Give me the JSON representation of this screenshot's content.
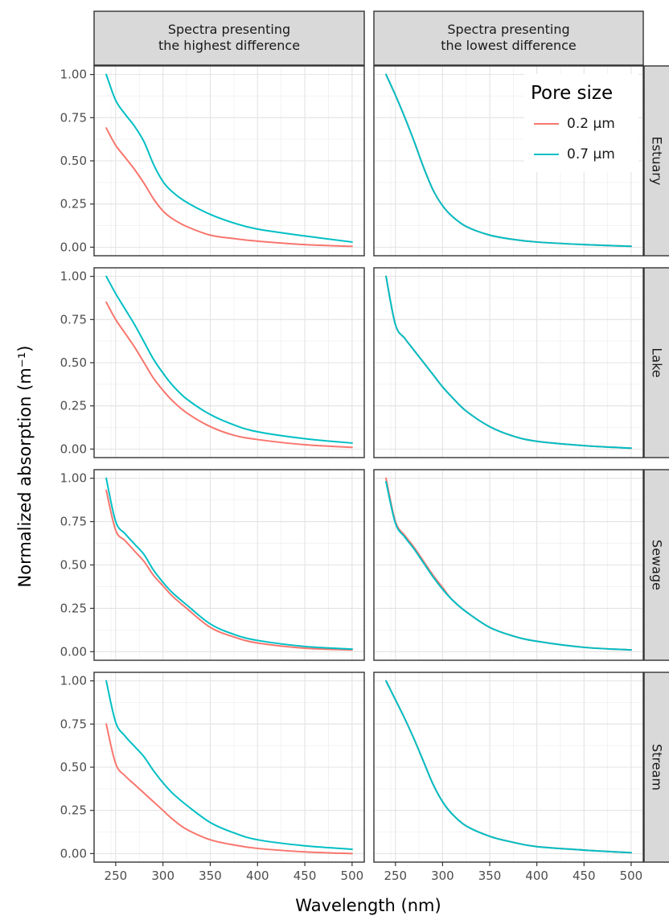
{
  "chart_data": {
    "type": "line",
    "layout": "facet-grid",
    "columns": [
      "Spectra presenting\nthe highest difference",
      "Spectra presenting\nthe lowest difference"
    ],
    "rows": [
      "Estuary",
      "Lake",
      "Sewage",
      "Stream"
    ],
    "xlabel": "Wavelength (nm)",
    "ylabel": "Normalized absorption (m⁻¹)",
    "xlim": [
      240,
      500
    ],
    "ylim": [
      0,
      1
    ],
    "xticks": [
      250,
      300,
      350,
      400,
      450,
      500
    ],
    "yticks": [
      "0.00",
      "0.25",
      "0.50",
      "0.75",
      "1.00"
    ],
    "grid": true,
    "legend": {
      "title": "Pore size",
      "placement": "top-right of Estuary / lowest-difference panel",
      "entries": [
        {
          "label": "0.2 µm",
          "color": "#F8766D"
        },
        {
          "label": "0.7 µm",
          "color": "#00BFC4"
        }
      ]
    },
    "x": [
      240,
      250,
      260,
      270,
      280,
      290,
      300,
      310,
      325,
      350,
      375,
      400,
      450,
      500
    ],
    "panels": [
      {
        "row": "Estuary",
        "column": 0,
        "series": [
          {
            "name": "0.2 µm",
            "values": [
              0.69,
              0.59,
              0.52,
              0.45,
              0.37,
              0.28,
              0.21,
              0.165,
              0.12,
              0.07,
              0.05,
              0.035,
              0.015,
              0.005
            ]
          },
          {
            "name": "0.7 µm",
            "values": [
              1.0,
              0.85,
              0.77,
              0.7,
              0.61,
              0.48,
              0.38,
              0.32,
              0.26,
              0.19,
              0.14,
              0.105,
              0.065,
              0.03
            ]
          }
        ]
      },
      {
        "row": "Estuary",
        "column": 1,
        "series": [
          {
            "name": "0.2 µm",
            "values": [
              1.0,
              0.88,
              0.75,
              0.61,
              0.46,
              0.33,
              0.24,
              0.18,
              0.12,
              0.07,
              0.045,
              0.03,
              0.015,
              0.005
            ]
          },
          {
            "name": "0.7 µm",
            "values": [
              1.0,
              0.88,
              0.75,
              0.61,
              0.46,
              0.33,
              0.24,
              0.18,
              0.12,
              0.07,
              0.045,
              0.03,
              0.015,
              0.005
            ]
          }
        ]
      },
      {
        "row": "Lake",
        "column": 0,
        "series": [
          {
            "name": "0.2 µm",
            "values": [
              0.85,
              0.75,
              0.67,
              0.59,
              0.5,
              0.41,
              0.34,
              0.28,
              0.21,
              0.13,
              0.08,
              0.055,
              0.025,
              0.01
            ]
          },
          {
            "name": "0.7 µm",
            "values": [
              1.0,
              0.9,
              0.81,
              0.72,
              0.62,
              0.52,
              0.44,
              0.37,
              0.29,
              0.2,
              0.14,
              0.1,
              0.06,
              0.035
            ]
          }
        ]
      },
      {
        "row": "Lake",
        "column": 1,
        "series": [
          {
            "name": "0.2 µm",
            "values": [
              1.0,
              0.72,
              0.64,
              0.57,
              0.5,
              0.43,
              0.36,
              0.3,
              0.22,
              0.13,
              0.075,
              0.045,
              0.02,
              0.005
            ]
          },
          {
            "name": "0.7 µm",
            "values": [
              1.0,
              0.72,
              0.64,
              0.57,
              0.5,
              0.43,
              0.36,
              0.3,
              0.22,
              0.13,
              0.075,
              0.045,
              0.02,
              0.005
            ]
          }
        ]
      },
      {
        "row": "Sewage",
        "column": 0,
        "series": [
          {
            "name": "0.2 µm",
            "values": [
              0.93,
              0.7,
              0.64,
              0.58,
              0.52,
              0.44,
              0.38,
              0.32,
              0.25,
              0.14,
              0.085,
              0.05,
              0.02,
              0.01
            ]
          },
          {
            "name": "0.7 µm",
            "values": [
              1.0,
              0.75,
              0.68,
              0.62,
              0.56,
              0.47,
              0.4,
              0.34,
              0.27,
              0.16,
              0.1,
              0.065,
              0.03,
              0.015
            ]
          }
        ]
      },
      {
        "row": "Sewage",
        "column": 1,
        "series": [
          {
            "name": "0.2 µm",
            "values": [
              1.0,
              0.75,
              0.67,
              0.6,
              0.52,
              0.44,
              0.37,
              0.3,
              0.23,
              0.14,
              0.09,
              0.06,
              0.025,
              0.01
            ]
          },
          {
            "name": "0.7 µm",
            "values": [
              0.98,
              0.74,
              0.66,
              0.59,
              0.51,
              0.43,
              0.36,
              0.3,
              0.23,
              0.14,
              0.09,
              0.06,
              0.025,
              0.01
            ]
          }
        ]
      },
      {
        "row": "Stream",
        "column": 0,
        "series": [
          {
            "name": "0.2 µm",
            "values": [
              0.75,
              0.52,
              0.45,
              0.4,
              0.35,
              0.3,
              0.25,
              0.2,
              0.14,
              0.08,
              0.05,
              0.03,
              0.01,
              0.0
            ]
          },
          {
            "name": "0.7 µm",
            "values": [
              1.0,
              0.76,
              0.68,
              0.62,
              0.56,
              0.48,
              0.41,
              0.35,
              0.28,
              0.18,
              0.12,
              0.08,
              0.045,
              0.025
            ]
          }
        ]
      },
      {
        "row": "Stream",
        "column": 1,
        "series": [
          {
            "name": "0.2 µm",
            "values": [
              1.0,
              0.89,
              0.78,
              0.66,
              0.53,
              0.4,
              0.3,
              0.23,
              0.16,
              0.1,
              0.065,
              0.04,
              0.02,
              0.005
            ]
          },
          {
            "name": "0.7 µm",
            "values": [
              1.0,
              0.89,
              0.78,
              0.66,
              0.53,
              0.4,
              0.3,
              0.23,
              0.16,
              0.1,
              0.065,
              0.04,
              0.02,
              0.005
            ]
          }
        ]
      }
    ]
  }
}
